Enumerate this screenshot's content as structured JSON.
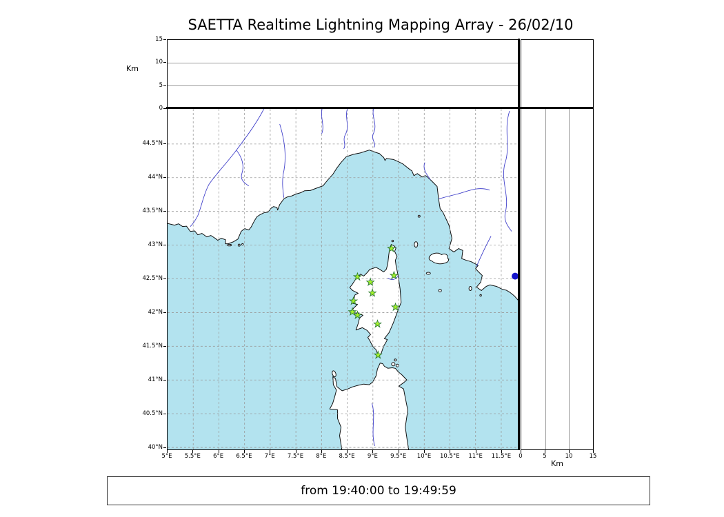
{
  "title": "SAETTA Realtime Lightning Mapping Array - 26/02/10",
  "footer": {
    "time_range": "from 19:40:00 to 19:49:59"
  },
  "axes": {
    "longitude": {
      "ticks": [
        "5°E",
        "5.5°E",
        "6°E",
        "6.5°E",
        "7°E",
        "7.5°E",
        "8°E",
        "8.5°E",
        "9°E",
        "9.5°E",
        "10°E",
        "10.5°E",
        "11°E",
        "11.5°E"
      ]
    },
    "latitude": {
      "ticks": [
        "40°N",
        "40.5°N",
        "41°N",
        "41.5°N",
        "42°N",
        "42.5°N",
        "43°N",
        "43.5°N",
        "44°N",
        "44.5°N"
      ]
    },
    "altitude_left": {
      "label": "Km",
      "ticks": [
        "0",
        "5",
        "10",
        "15"
      ],
      "max": 15,
      "gridlines": [
        5,
        10
      ]
    },
    "altitude_bottom": {
      "label": "Km",
      "ticks": [
        "0",
        "5",
        "10",
        "15"
      ],
      "max": 15,
      "gridlines": [
        5,
        10
      ]
    }
  },
  "map": {
    "sea_color": "#b3e3ef",
    "land_color": "#ffffff",
    "coast_color": "#101010",
    "river_color": "#4343cb",
    "grid_color": "#9a9a9a"
  },
  "stations": {
    "marker": "star",
    "color": "#a6f22e",
    "edge_color": "#2e7d32",
    "points": [
      {
        "lon": 9.36,
        "lat": 42.95
      },
      {
        "lon": 8.7,
        "lat": 42.53
      },
      {
        "lon": 8.95,
        "lat": 42.45
      },
      {
        "lon": 9.41,
        "lat": 42.55
      },
      {
        "lon": 8.99,
        "lat": 42.29
      },
      {
        "lon": 8.62,
        "lat": 42.17
      },
      {
        "lon": 8.6,
        "lat": 42.01
      },
      {
        "lon": 9.44,
        "lat": 42.08
      },
      {
        "lon": 8.7,
        "lat": 41.96
      },
      {
        "lon": 9.09,
        "lat": 41.83
      },
      {
        "lon": 9.1,
        "lat": 41.37
      }
    ]
  },
  "event_marker": {
    "lon": 11.77,
    "lat": 42.54,
    "color": "#1414cc"
  }
}
